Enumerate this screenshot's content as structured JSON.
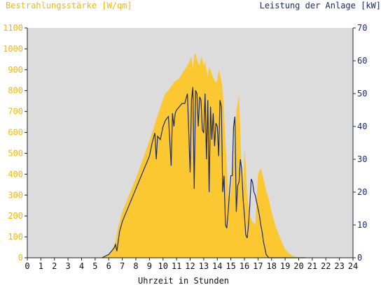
{
  "chart_data": {
    "type": "area",
    "title_left": "Bestrahlungsstärke [W/qm]",
    "title_right": "Leistung der Anlage [kW]",
    "xlabel": "Uhrzeit in Stunden",
    "xlim": [
      0,
      24
    ],
    "x_ticks": [
      "0",
      "1",
      "2",
      "3",
      "4",
      "5",
      "6",
      "7",
      "8",
      "9",
      "10",
      "11",
      "12",
      "13",
      "14",
      "15",
      "16",
      "17",
      "18",
      "19",
      "20",
      "21",
      "22",
      "23",
      "24"
    ],
    "y_left_lim": [
      0,
      1100
    ],
    "y_left_ticks": [
      "0",
      "100",
      "200",
      "300",
      "400",
      "500",
      "600",
      "700",
      "800",
      "900",
      "1000",
      "1100"
    ],
    "y_right_lim": [
      0,
      70
    ],
    "y_right_ticks": [
      "0",
      "10",
      "20",
      "30",
      "40",
      "50",
      "60",
      "70"
    ],
    "grid": false,
    "colors": {
      "plot_background": "#dcdcdc",
      "irradiance_fill": "#fcc832",
      "power_line": "#1a2a6a",
      "left_axis_text": "#f5b800",
      "right_axis_text": "#1a2a6a"
    },
    "series": [
      {
        "axis": "left",
        "x": [
          5.5,
          6.0,
          6.3,
          6.5,
          6.7,
          7.0,
          7.5,
          8.0,
          8.5,
          9.0,
          9.3,
          9.6,
          9.8,
          10.0,
          10.2,
          10.4,
          10.6,
          10.8,
          11.0,
          11.2,
          11.4,
          11.6,
          11.8,
          12.0,
          12.1,
          12.2,
          12.3,
          12.4,
          12.5,
          12.6,
          12.7,
          12.8,
          12.9,
          13.0,
          13.1,
          13.2,
          13.3,
          13.4,
          13.5,
          13.6,
          13.7,
          13.8,
          13.9,
          14.0,
          14.1,
          14.2,
          14.3,
          14.4,
          14.5,
          14.6,
          14.7,
          14.8,
          14.9,
          15.0,
          15.2,
          15.4,
          15.6,
          15.7,
          15.8,
          15.9,
          16.0,
          16.1,
          16.2,
          16.4,
          16.6,
          16.8,
          17.0,
          17.2,
          17.4,
          17.6,
          17.8,
          18.0,
          18.3,
          18.6,
          19.0,
          19.3,
          19.6,
          20.0,
          20.2,
          20.5
        ],
        "values": [
          0,
          15,
          45,
          80,
          150,
          220,
          300,
          380,
          470,
          560,
          620,
          680,
          720,
          760,
          790,
          800,
          820,
          840,
          850,
          860,
          880,
          900,
          920,
          950,
          960,
          900,
          970,
          980,
          950,
          930,
          920,
          960,
          950,
          920,
          940,
          900,
          870,
          910,
          900,
          880,
          860,
          850,
          840,
          850,
          900,
          880,
          850,
          800,
          700,
          550,
          450,
          300,
          280,
          320,
          450,
          700,
          780,
          600,
          400,
          300,
          520,
          450,
          300,
          200,
          170,
          160,
          400,
          430,
          380,
          320,
          280,
          220,
          150,
          100,
          40,
          20,
          8,
          2,
          0,
          0
        ]
      },
      {
        "axis": "right",
        "x": [
          5.5,
          6.0,
          6.2,
          6.4,
          6.5,
          6.6,
          6.7,
          6.8,
          7.0,
          7.5,
          8.0,
          8.5,
          9.0,
          9.2,
          9.4,
          9.5,
          9.6,
          9.8,
          10.0,
          10.2,
          10.4,
          10.6,
          10.7,
          10.8,
          10.9,
          11.0,
          11.2,
          11.4,
          11.6,
          11.8,
          12.0,
          12.1,
          12.2,
          12.3,
          12.4,
          12.5,
          12.6,
          12.7,
          12.8,
          12.9,
          13.0,
          13.1,
          13.2,
          13.3,
          13.4,
          13.5,
          13.6,
          13.7,
          13.8,
          13.9,
          14.0,
          14.1,
          14.2,
          14.3,
          14.4,
          14.5,
          14.6,
          14.7,
          14.8,
          14.9,
          15.0,
          15.1,
          15.2,
          15.3,
          15.4,
          15.5,
          15.6,
          15.7,
          15.8,
          15.9,
          16.0,
          16.1,
          16.2,
          16.3,
          16.4,
          16.5,
          16.6,
          16.7,
          16.8,
          16.9,
          17.0,
          17.1,
          17.2,
          17.3,
          17.4,
          17.5,
          17.6,
          17.8,
          18.0,
          18.3,
          18.6,
          19.0,
          19.3,
          19.6,
          20.0,
          20.2,
          20.5
        ],
        "values": [
          0,
          1,
          2,
          3,
          4,
          2,
          5,
          8,
          11,
          16,
          21,
          26,
          31,
          35,
          38,
          30,
          37,
          36,
          40,
          42,
          43,
          28,
          44,
          40,
          44,
          45,
          46,
          47,
          47,
          50,
          26,
          48,
          52,
          21,
          51,
          50,
          40,
          49,
          48,
          39,
          38,
          50,
          30,
          48,
          20,
          46,
          36,
          44,
          34,
          41,
          40,
          31,
          48,
          46,
          20,
          25,
          10,
          9,
          14,
          20,
          25,
          25,
          40,
          43,
          14,
          22,
          23,
          30,
          27,
          18,
          13,
          7,
          6,
          10,
          16,
          24,
          23,
          20,
          19,
          17,
          15,
          13,
          10,
          8,
          5,
          3,
          1,
          0,
          0,
          0,
          0,
          0,
          0,
          0,
          0,
          0,
          0
        ]
      }
    ]
  }
}
